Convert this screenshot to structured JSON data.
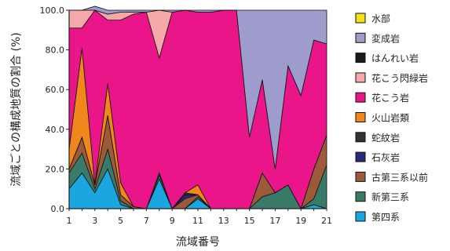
{
  "chart_data": {
    "type": "area",
    "stacked": true,
    "xlabel": "流域番号",
    "ylabel": "流域ごとの構成地質の割合 (%)",
    "x": [
      1,
      2,
      3,
      4,
      5,
      6,
      7,
      8,
      9,
      10,
      11,
      12,
      13,
      14,
      15,
      16,
      17,
      18,
      19,
      20,
      21
    ],
    "x_ticks": [
      1,
      3,
      5,
      7,
      9,
      11,
      13,
      15,
      17,
      19,
      21
    ],
    "ylim": [
      0,
      100
    ],
    "y_ticks": [
      "0.0",
      "20.0",
      "40.0",
      "60.0",
      "80.0",
      "100.0"
    ],
    "grid": false,
    "legend_position": "right",
    "series": [
      {
        "name": "第四系",
        "color": "#1aa6df",
        "values": [
          10,
          18,
          8,
          20,
          2,
          0,
          0,
          15,
          0,
          0,
          5,
          0,
          0,
          0,
          0,
          0,
          0,
          0,
          0,
          2,
          0
        ]
      },
      {
        "name": "新第三系",
        "color": "#3a7a68",
        "values": [
          8,
          10,
          2,
          10,
          2,
          0,
          0,
          2,
          0,
          0,
          1,
          0,
          0,
          0,
          0,
          6,
          8,
          12,
          0,
          3,
          22
        ]
      },
      {
        "name": "古第三系以前",
        "color": "#9c5a3a",
        "values": [
          2,
          8,
          2,
          17,
          3,
          1,
          0,
          1,
          0,
          5,
          1,
          0,
          0,
          0,
          0,
          12,
          0,
          0,
          0,
          15,
          15
        ]
      },
      {
        "name": "石灰岩",
        "color": "#2a2a7a",
        "values": [
          0,
          0,
          0,
          0,
          0,
          0,
          0,
          0,
          0,
          2,
          0,
          0,
          0,
          0,
          0,
          0,
          0,
          0,
          0,
          0,
          0
        ]
      },
      {
        "name": "蛇紋岩",
        "color": "#333333",
        "values": [
          0,
          0,
          0,
          0,
          0,
          0,
          0,
          0,
          0,
          1,
          0,
          0,
          0,
          0,
          0,
          0,
          0,
          0,
          0,
          0,
          0
        ]
      },
      {
        "name": "火山岩類",
        "color": "#f0861c",
        "values": [
          10,
          45,
          0,
          16,
          6,
          0,
          0,
          0,
          0,
          0,
          5,
          0,
          0,
          0,
          0,
          0,
          0,
          0,
          0,
          0,
          0
        ]
      },
      {
        "name": "花こう岩",
        "color": "#ea1689",
        "values": [
          61,
          10,
          88,
          32,
          82,
          97,
          99,
          58,
          99,
          92,
          87,
          99,
          100,
          100,
          36,
          47,
          12,
          60,
          57,
          65,
          46
        ]
      },
      {
        "name": "花こう閃緑岩",
        "color": "#f5a8a8",
        "values": [
          9,
          9,
          0,
          3,
          4,
          1,
          0,
          24,
          0,
          0,
          0,
          0,
          0,
          0,
          0,
          0,
          0,
          0,
          0,
          0,
          0
        ]
      },
      {
        "name": "はんれい岩",
        "color": "#1a1a1a",
        "values": [
          0,
          0,
          0,
          0,
          0,
          0,
          0,
          0,
          0,
          0,
          0,
          0,
          0,
          0,
          0,
          0,
          0,
          0,
          0,
          0,
          0
        ]
      },
      {
        "name": "変成岩",
        "color": "#9d9ccc",
        "values": [
          0,
          0,
          2,
          2,
          1,
          1,
          1,
          0,
          1,
          0,
          1,
          1,
          0,
          0,
          64,
          35,
          80,
          28,
          43,
          15,
          17
        ]
      },
      {
        "name": "水部",
        "color": "#f5e11a",
        "values": [
          0,
          0,
          0,
          0,
          0,
          0,
          0,
          0,
          0,
          0,
          0,
          0,
          0,
          0,
          0,
          0,
          0,
          0,
          0,
          0,
          0
        ]
      }
    ],
    "legend_order": [
      "水部",
      "変成岩",
      "はんれい岩",
      "花こう閃緑岩",
      "花こう岩",
      "火山岩類",
      "蛇紋岩",
      "石灰岩",
      "古第三系以前",
      "新第三系",
      "第四系"
    ]
  }
}
